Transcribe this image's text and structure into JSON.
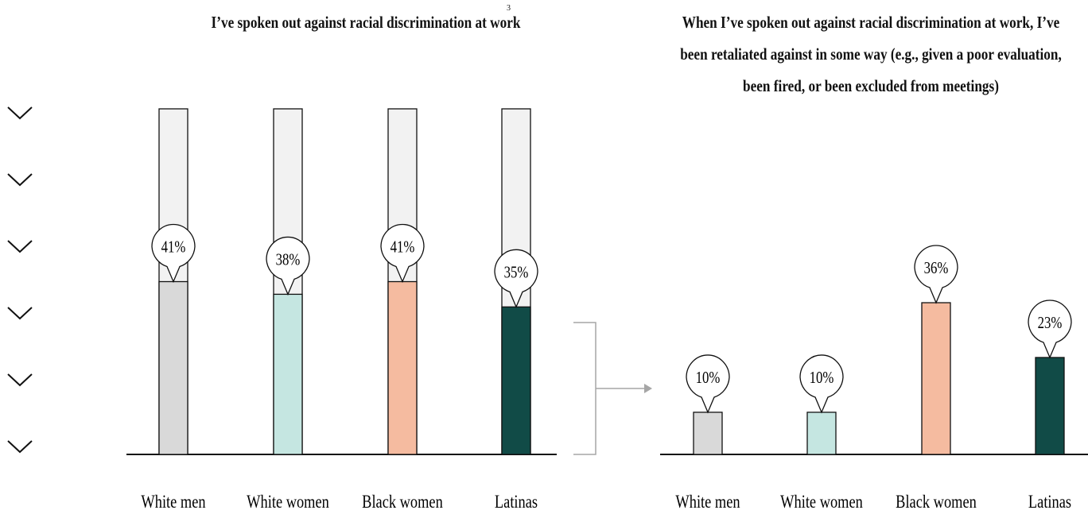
{
  "left_title": "I’ve spoken out against racial discrimination at work",
  "footnote_marker": "3",
  "right_title_lines": [
    "When I’ve spoken out against racial discrimination at work, I’ve",
    "been retaliated against in some way (e.g., given a poor evaluation,",
    "been fired, or been excluded from meetings)"
  ],
  "icons": [
    "chevron-down-icon",
    "chevron-down-icon",
    "chevron-down-icon",
    "chevron-down-icon",
    "chevron-down-icon",
    "chevron-down-icon"
  ],
  "colors": {
    "white_men": "#d9d9d9",
    "white_women": "#c5e6e1",
    "black_women": "#f5bba0",
    "latinas": "#114b47",
    "track": "#f2f2f2",
    "connector": "#a6a6a6"
  },
  "chart_data": [
    {
      "type": "bar",
      "title": "I’ve spoken out against racial discrimination at work",
      "categories": [
        "White men",
        "White women",
        "Black women",
        "Latinas"
      ],
      "values": [
        41,
        38,
        41,
        35
      ],
      "value_labels": [
        "41%",
        "38%",
        "41%",
        "35%"
      ],
      "ylim": [
        0,
        82
      ],
      "track_max": 82,
      "grid": false
    },
    {
      "type": "bar",
      "title": "When I’ve spoken out against racial discrimination at work, I’ve been retaliated against in some way (e.g., given a poor evaluation, been fired, or been excluded from meetings)",
      "categories": [
        "White men",
        "White women",
        "Black women",
        "Latinas"
      ],
      "values": [
        10,
        10,
        36,
        23
      ],
      "value_labels": [
        "10%",
        "10%",
        "36%",
        "23%"
      ],
      "ylim": [
        0,
        50
      ],
      "grid": false
    }
  ]
}
